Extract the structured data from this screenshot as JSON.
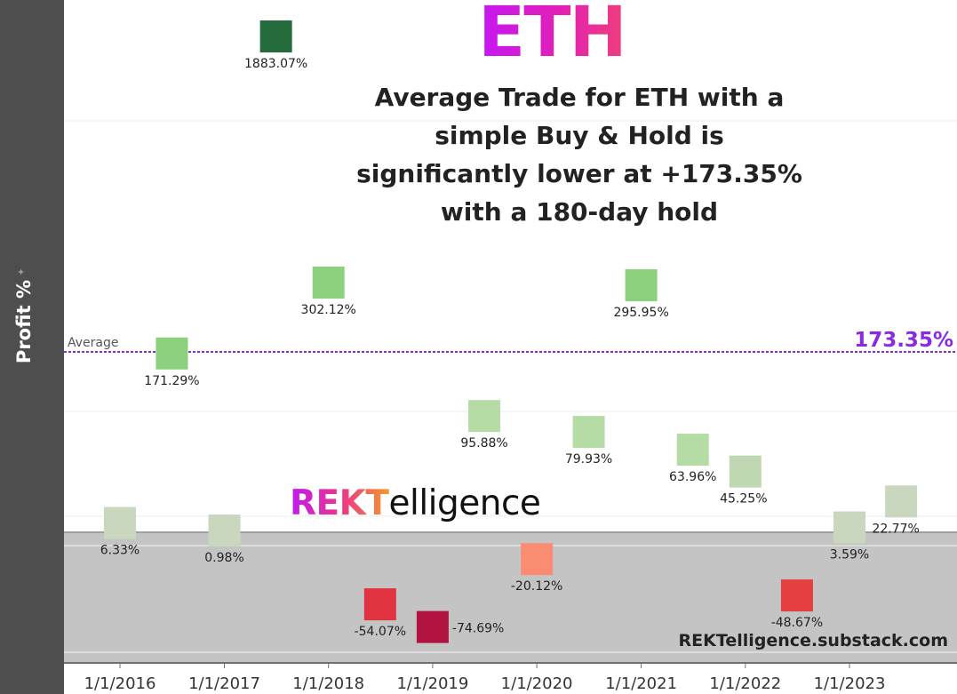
{
  "logo_text": "ETH",
  "headline": [
    "Average Trade for ETH with a",
    "simple Buy & Hold is",
    "significantly lower at +173.35%",
    "with a 180-day hold"
  ],
  "brand": {
    "prefix": "REKT",
    "suffix": "elligence"
  },
  "site": "REKTelligence.substack.com",
  "chart_data": {
    "type": "scatter",
    "title": "",
    "ylabel": "Profit %",
    "average": {
      "label": "Average",
      "value": 173.35,
      "value_label": "173.35%"
    },
    "x_ticks": [
      "1/1/2016",
      "1/1/2017",
      "1/1/2018",
      "1/1/2019",
      "1/1/2020",
      "1/1/2021",
      "1/1/2022",
      "1/1/2023"
    ],
    "points": [
      {
        "x": "2016-01-01",
        "y": 6.33,
        "label": "6.33%",
        "color": "#c9d7bf"
      },
      {
        "x": "2016-07-01",
        "y": 171.29,
        "label": "171.29%",
        "color": "#8cd17d"
      },
      {
        "x": "2017-01-01",
        "y": 0.98,
        "label": "0.98%",
        "color": "#c9d7bf"
      },
      {
        "x": "2017-07-01",
        "y": 1883.07,
        "label": "1883.07%",
        "color": "#256c3d"
      },
      {
        "x": "2018-01-01",
        "y": 302.12,
        "label": "302.12%",
        "color": "#8cd17d"
      },
      {
        "x": "2018-07-01",
        "y": -54.07,
        "label": "-54.07%",
        "color": "#e0323f"
      },
      {
        "x": "2019-01-01",
        "y": -74.69,
        "label": "-74.69%",
        "color": "#b0133f"
      },
      {
        "x": "2019-07-01",
        "y": 95.88,
        "label": "95.88%",
        "color": "#b6dca6"
      },
      {
        "x": "2020-01-01",
        "y": -20.12,
        "label": "-20.12%",
        "color": "#fa8c72"
      },
      {
        "x": "2020-07-01",
        "y": 79.93,
        "label": "79.93%",
        "color": "#b6dca6"
      },
      {
        "x": "2021-01-01",
        "y": 295.95,
        "label": "295.95%",
        "color": "#8cd17d"
      },
      {
        "x": "2021-07-01",
        "y": 63.96,
        "label": "63.96%",
        "color": "#b6dca6"
      },
      {
        "x": "2022-01-01",
        "y": 45.25,
        "label": "45.25%",
        "color": "#c0d8b2"
      },
      {
        "x": "2022-07-01",
        "y": -48.67,
        "label": "-48.67%",
        "color": "#e44040"
      },
      {
        "x": "2023-01-01",
        "y": 3.59,
        "label": "3.59%",
        "color": "#c9d7bf"
      },
      {
        "x": "2023-07-01",
        "y": 22.77,
        "label": "22.77%",
        "color": "#c9d7bf"
      }
    ],
    "negative_region_color": "#c4c4c4",
    "average_color": "#8a2be2",
    "grid": true
  }
}
